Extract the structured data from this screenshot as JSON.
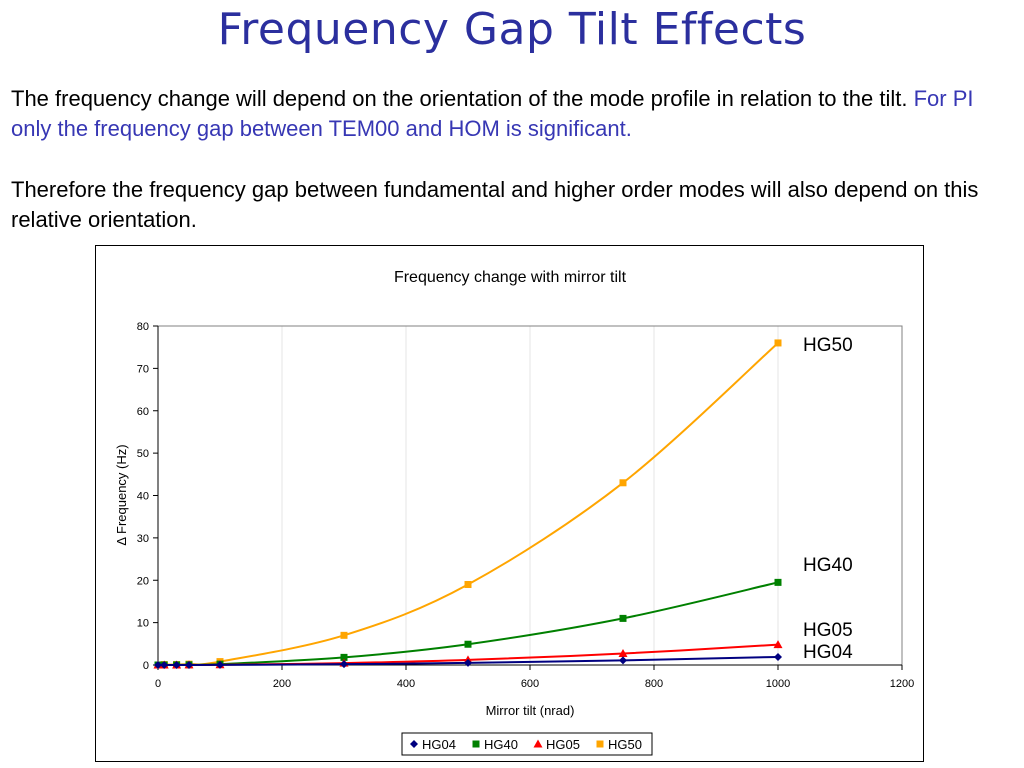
{
  "slide": {
    "title": "Frequency Gap Tilt Effects",
    "para1_black": "The frequency change will depend on the orientation of the mode profile in relation to the tilt.",
    "para1_blue": "For PI only the frequency gap between TEM00 and HOM is significant.",
    "para2": "Therefore the frequency gap between fundamental and higher order modes will also depend on this relative orientation."
  },
  "chart_data": {
    "type": "line",
    "title": "Frequency change with mirror tilt",
    "xlabel": "Mirror tilt (nrad)",
    "ylabel": "Δ Frequency (Hz)",
    "xlim": [
      0,
      1200
    ],
    "ylim": [
      0,
      80
    ],
    "xticks": [
      0,
      200,
      400,
      600,
      800,
      1000,
      1200
    ],
    "yticks": [
      0,
      10,
      20,
      30,
      40,
      50,
      60,
      70,
      80
    ],
    "grid": "vertical",
    "legend": "bottom",
    "series": [
      {
        "name": "HG04",
        "color": "#000080",
        "marker": "diamond",
        "x": [
          0,
          10,
          30,
          50,
          100,
          300,
          500,
          750,
          1000
        ],
        "y": [
          0,
          0,
          0,
          0,
          0.02,
          0.2,
          0.5,
          1.1,
          1.9
        ],
        "end_label": "HG04"
      },
      {
        "name": "HG40",
        "color": "#008000",
        "marker": "square",
        "x": [
          0,
          10,
          30,
          50,
          100,
          300,
          500,
          750,
          1000
        ],
        "y": [
          0,
          0,
          0.02,
          0.05,
          0.2,
          1.8,
          4.9,
          11,
          19.5
        ],
        "end_label": "HG40"
      },
      {
        "name": "HG05",
        "color": "#ff0000",
        "marker": "triangle",
        "x": [
          0,
          10,
          30,
          50,
          100,
          300,
          500,
          750,
          1000
        ],
        "y": [
          0,
          0,
          0.01,
          0.02,
          0.05,
          0.45,
          1.2,
          2.7,
          4.8
        ],
        "end_label": "HG05"
      },
      {
        "name": "HG50",
        "color": "#ffa500",
        "marker": "square",
        "x": [
          0,
          10,
          30,
          50,
          100,
          300,
          500,
          750,
          1000
        ],
        "y": [
          0,
          0.1,
          0.1,
          0.2,
          0.8,
          7,
          19,
          43,
          76
        ],
        "end_label": "HG50"
      }
    ]
  }
}
